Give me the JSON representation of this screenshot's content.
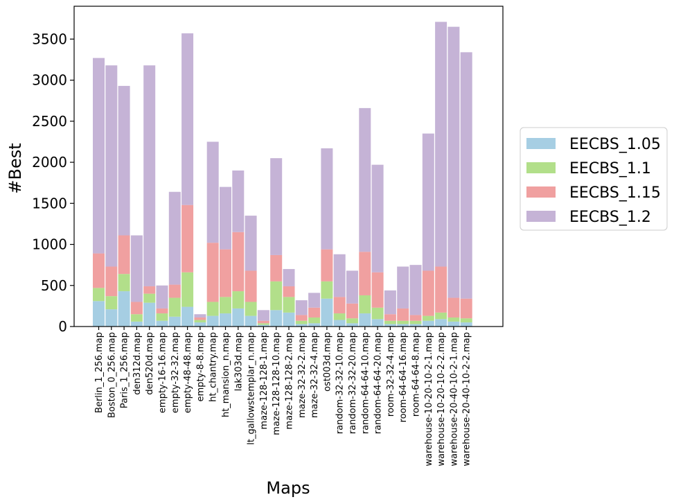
{
  "chart_data": {
    "type": "bar",
    "stacked": true,
    "title": "",
    "xlabel": "Maps",
    "ylabel": "#Best",
    "ylim": [
      0,
      3900
    ],
    "yticks": [
      0,
      500,
      1000,
      1500,
      2000,
      2500,
      3000,
      3500
    ],
    "legend_position": "right",
    "categories": [
      "Berlin_1_256.map",
      "Boston_0_256.map",
      "Paris_1_256.map",
      "den312d.map",
      "den520d.map",
      "empty-16-16.map",
      "empty-32-32.map",
      "empty-48-48.map",
      "empty-8-8.map",
      "ht_chantry.map",
      "ht_mansion_n.map",
      "lak303d.map",
      "lt_gallowstemplar_n.map",
      "maze-128-128-1.map",
      "maze-128-128-10.map",
      "maze-128-128-2.map",
      "maze-32-32-2.map",
      "maze-32-32-4.map",
      "ost003d.map",
      "random-32-32-10.map",
      "random-32-32-20.map",
      "random-64-64-10.map",
      "random-64-64-20.map",
      "room-32-32-4.map",
      "room-64-64-16.map",
      "room-64-64-8.map",
      "warehouse-10-20-10-2-1.map",
      "warehouse-10-20-10-2-2.map",
      "warehouse-20-40-10-2-1.map",
      "warehouse-20-40-10-2-2.map"
    ],
    "series": [
      {
        "name": "EECBS_1.05",
        "color": "#a6cee3",
        "values": [
          310,
          210,
          430,
          60,
          290,
          70,
          120,
          240,
          50,
          130,
          160,
          220,
          130,
          20,
          200,
          170,
          30,
          40,
          340,
          80,
          40,
          160,
          90,
          30,
          30,
          30,
          70,
          90,
          60,
          50
        ]
      },
      {
        "name": "EECBS_1.1",
        "color": "#b2df8a",
        "values": [
          160,
          160,
          210,
          90,
          110,
          90,
          230,
          420,
          30,
          170,
          200,
          210,
          170,
          20,
          350,
          190,
          40,
          70,
          210,
          80,
          60,
          220,
          140,
          40,
          40,
          40,
          60,
          80,
          50,
          50
        ]
      },
      {
        "name": "EECBS_1.15",
        "color": "#f0a0a0",
        "values": [
          420,
          360,
          470,
          150,
          90,
          60,
          160,
          820,
          30,
          720,
          580,
          720,
          380,
          30,
          320,
          130,
          70,
          120,
          390,
          200,
          180,
          530,
          430,
          80,
          150,
          70,
          550,
          560,
          240,
          240
        ]
      },
      {
        "name": "EECBS_1.2",
        "color": "#c5b3d6",
        "values": [
          2380,
          2450,
          1820,
          810,
          2690,
          280,
          1130,
          2090,
          40,
          1230,
          760,
          750,
          670,
          130,
          1180,
          210,
          180,
          180,
          1230,
          520,
          400,
          1750,
          1310,
          290,
          510,
          610,
          1670,
          2980,
          3300,
          3000
        ]
      }
    ]
  }
}
